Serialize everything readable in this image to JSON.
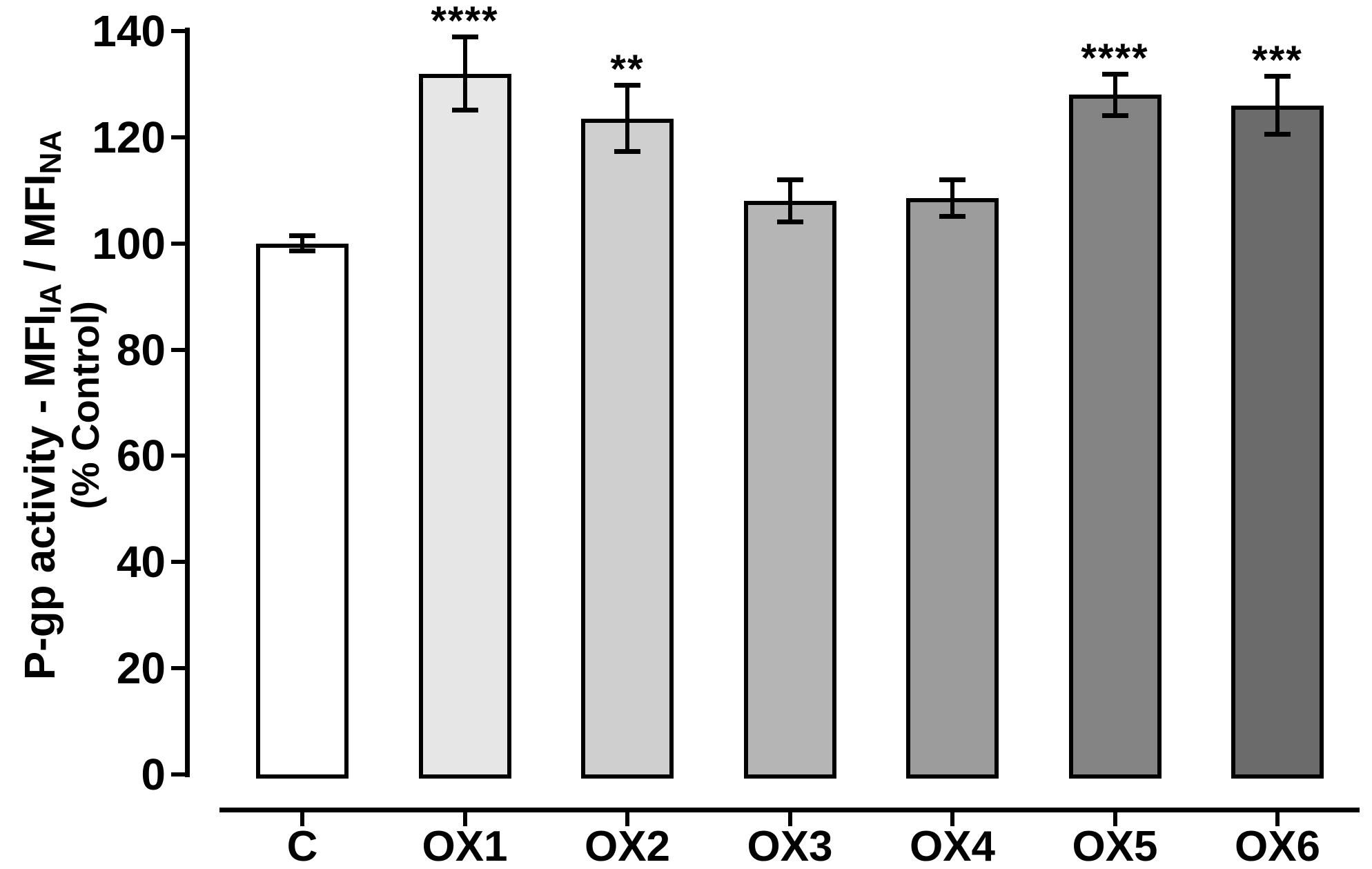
{
  "chart_data": {
    "type": "bar",
    "title": "",
    "ylabel": {
      "line1_prefix": "P-gp activity - MFI",
      "line1_sub1": "IA",
      "line1_mid": " / MFI",
      "line1_sub2": "NA",
      "line2": "(% Control)"
    },
    "xlabel": "",
    "ylim": [
      0,
      140
    ],
    "yticks": [
      0,
      20,
      40,
      60,
      80,
      100,
      120,
      140
    ],
    "categories": [
      "C",
      "OX1",
      "OX2",
      "OX3",
      "OX4",
      "OX5",
      "OX6"
    ],
    "values": [
      100,
      132,
      123.5,
      108,
      108.5,
      128,
      126
    ],
    "errors": [
      1.5,
      7,
      6.3,
      4,
      3.5,
      4,
      5.5
    ],
    "error_style": "both-caps",
    "significance": [
      "",
      "****",
      "**",
      "",
      "",
      "****",
      "***"
    ],
    "bar_colors": [
      "#ffffff",
      "#e6e6e6",
      "#cfcfcf",
      "#b5b5b5",
      "#9c9c9c",
      "#848484",
      "#6b6b6b"
    ],
    "bar_border_color": "#000000",
    "axis_color": "#000000",
    "grid": false,
    "legend": null
  }
}
